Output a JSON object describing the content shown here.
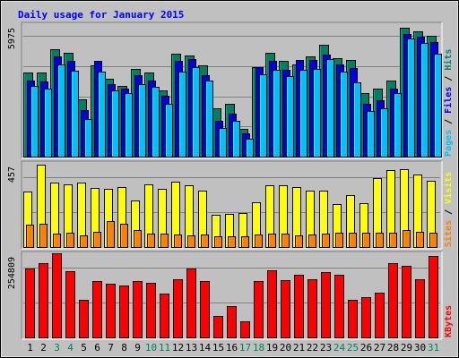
{
  "chart_data": [
    {
      "type": "bar",
      "title": "Daily usage for January 2015",
      "max_label": "5975",
      "ylim": [
        0,
        5975
      ],
      "grid": true,
      "legend": {
        "placement": "right",
        "entries": [
          {
            "label": "Pages",
            "color": "#00C0FF"
          },
          {
            "label": "Files",
            "color": "#0000FF"
          },
          {
            "label": "Hits",
            "color": "#008080"
          }
        ],
        "separator": " / "
      },
      "categories": [
        "1",
        "2",
        "3",
        "4",
        "5",
        "6",
        "7",
        "8",
        "9",
        "10",
        "11",
        "12",
        "13",
        "14",
        "15",
        "16",
        "17",
        "18",
        "19",
        "20",
        "21",
        "22",
        "23",
        "24",
        "25",
        "26",
        "27",
        "28",
        "29",
        "30",
        "31"
      ],
      "weekend_days": [
        "3",
        "4",
        "10",
        "11",
        "17",
        "18",
        "24",
        "25",
        "31"
      ],
      "series": [
        {
          "name": "Hits",
          "color": "#008060",
          "values": [
            3790,
            3800,
            4850,
            4700,
            2580,
            4100,
            3500,
            3200,
            3970,
            3800,
            3000,
            4630,
            4580,
            4110,
            2180,
            2380,
            1270,
            4040,
            4690,
            4330,
            4140,
            4510,
            5050,
            4460,
            4380,
            2880,
            3060,
            3430,
            5800,
            5670,
            5450
          ]
        },
        {
          "name": "Files",
          "color": "#0000E0",
          "values": [
            3430,
            3400,
            4530,
            4300,
            2090,
            4330,
            3260,
            3060,
            3680,
            3450,
            2750,
            4320,
            4400,
            3680,
            1630,
            1920,
            1040,
            4050,
            4310,
            3930,
            4360,
            4380,
            4600,
            4150,
            4010,
            2400,
            2550,
            3070,
            5530,
            5400,
            5160
          ]
        },
        {
          "name": "Pages",
          "color": "#00C0FF",
          "values": [
            3170,
            3060,
            4150,
            3880,
            1690,
            3850,
            2970,
            2880,
            3270,
            3150,
            2380,
            3850,
            4030,
            3420,
            1280,
            1620,
            790,
            3700,
            3920,
            3630,
            3910,
            3950,
            4420,
            3820,
            3350,
            2040,
            2200,
            2850,
            5310,
            5110,
            4640
          ]
        }
      ]
    },
    {
      "type": "bar",
      "max_label": "457",
      "ylim": [
        0,
        457
      ],
      "grid": true,
      "legend": {
        "placement": "right",
        "entries": [
          {
            "label": "Sites",
            "color": "#FF8000"
          },
          {
            "label": "Visits",
            "color": "#FFFF00"
          }
        ],
        "separator": " / "
      },
      "categories": [
        "1",
        "2",
        "3",
        "4",
        "5",
        "6",
        "7",
        "8",
        "9",
        "10",
        "11",
        "12",
        "13",
        "14",
        "15",
        "16",
        "17",
        "18",
        "19",
        "20",
        "21",
        "22",
        "23",
        "24",
        "25",
        "26",
        "27",
        "28",
        "29",
        "30",
        "31"
      ],
      "series": [
        {
          "name": "Visits",
          "color": "#FFFF00",
          "values": [
            300,
            448,
            352,
            340,
            352,
            320,
            315,
            325,
            255,
            338,
            318,
            355,
            335,
            308,
            175,
            180,
            185,
            245,
            335,
            335,
            328,
            305,
            308,
            235,
            280,
            238,
            375,
            420,
            422,
            395,
            360
          ]
        },
        {
          "name": "Sites",
          "color": "#FF8000",
          "values": [
            120,
            125,
            75,
            80,
            62,
            85,
            140,
            125,
            90,
            75,
            75,
            70,
            65,
            70,
            60,
            60,
            60,
            70,
            75,
            75,
            65,
            70,
            75,
            80,
            80,
            80,
            80,
            80,
            90,
            85,
            80
          ]
        }
      ]
    },
    {
      "type": "bar",
      "max_label": "254809",
      "ylim": [
        0,
        254809
      ],
      "grid": true,
      "legend": {
        "placement": "right",
        "entries": [
          {
            "label": "KBytes",
            "color": "#FF0000"
          }
        ],
        "separator": ""
      },
      "categories": [
        "1",
        "2",
        "3",
        "4",
        "5",
        "6",
        "7",
        "8",
        "9",
        "10",
        "11",
        "12",
        "13",
        "14",
        "15",
        "16",
        "17",
        "18",
        "19",
        "20",
        "21",
        "22",
        "23",
        "24",
        "25",
        "26",
        "27",
        "28",
        "29",
        "30",
        "31"
      ],
      "series": [
        {
          "name": "KBytes",
          "color": "#FF0000",
          "values": [
            208000,
            225000,
            254000,
            200000,
            113000,
            170000,
            163000,
            157000,
            170000,
            166000,
            132000,
            176000,
            210000,
            170000,
            65000,
            94000,
            48000,
            172000,
            203000,
            174000,
            190000,
            176000,
            198000,
            190000,
            115000,
            121000,
            135000,
            225000,
            218000,
            175000,
            248000
          ]
        }
      ]
    }
  ]
}
